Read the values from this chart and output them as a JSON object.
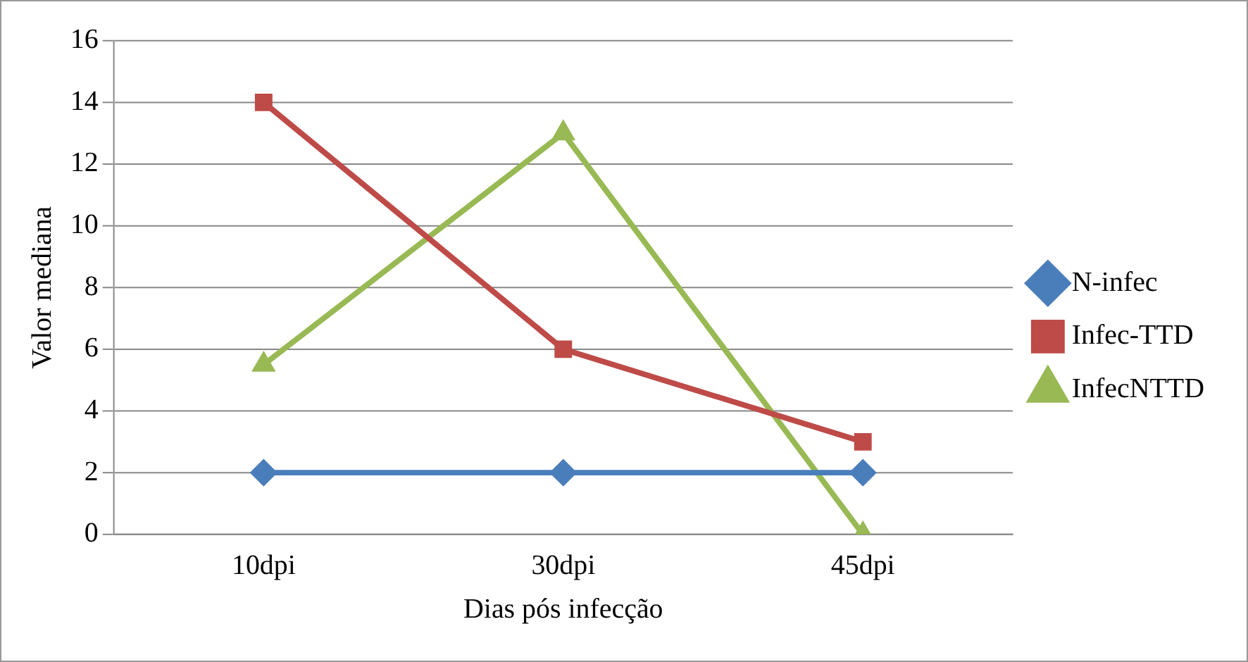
{
  "chart_data": {
    "type": "line",
    "xlabel": "Dias pós infecção",
    "ylabel": "Valor mediana",
    "categories": [
      "10dpi",
      "30dpi",
      "45dpi"
    ],
    "series": [
      {
        "name": "N-infec",
        "color": "#4a7ebb",
        "marker": "diamond",
        "values": [
          2,
          2,
          2
        ]
      },
      {
        "name": "Infec-TTD",
        "color": "#be4b48",
        "marker": "square",
        "values": [
          14,
          6,
          3
        ]
      },
      {
        "name": "InfecNTTD",
        "color": "#98b954",
        "marker": "triangle",
        "values": [
          5.5,
          13,
          0
        ]
      }
    ],
    "ylim": [
      0,
      16
    ],
    "yticks": [
      0,
      2,
      4,
      6,
      8,
      10,
      12,
      14,
      16
    ],
    "grid": "y",
    "legend": "right",
    "line_style": "solid"
  }
}
